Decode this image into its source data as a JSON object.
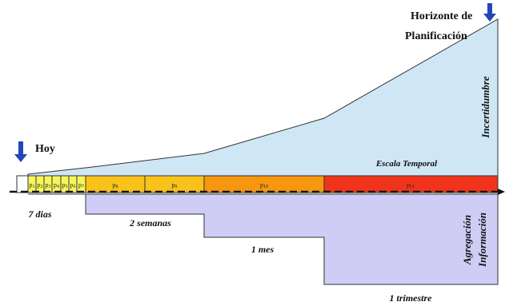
{
  "labels": {
    "horizon_line1": "Horizonte de",
    "horizon_line2": "Planificación",
    "today": "Hoy",
    "uncertainty": "Incertidumbre",
    "time_scale": "Escala Temporal",
    "aggregation_line1": "Agregación",
    "aggregation_line2": "Información"
  },
  "periods": [
    {
      "label": "p",
      "sub": "1"
    },
    {
      "label": "p",
      "sub": "2"
    },
    {
      "label": "p",
      "sub": "3"
    },
    {
      "label": "p",
      "sub": "4"
    },
    {
      "label": "p",
      "sub": "5"
    },
    {
      "label": "p",
      "sub": "6"
    },
    {
      "label": "p",
      "sub": "7"
    },
    {
      "label": "p",
      "sub": "8"
    },
    {
      "label": "p",
      "sub": "9"
    },
    {
      "label": "p",
      "sub": "10"
    },
    {
      "label": "p",
      "sub": "11"
    }
  ],
  "step_labels": [
    "7 dias",
    "2 semanas",
    "1 mes",
    "1 trimestre"
  ],
  "colors": {
    "uncertainty_fill": "#cfe6f5",
    "aggregation_fill": "#cfcdf5",
    "daily": "#f6f65a",
    "weekly": "#f9c21a",
    "monthly": "#f7960f",
    "quarterly": "#f0341b",
    "arrow": "#2346b8"
  }
}
